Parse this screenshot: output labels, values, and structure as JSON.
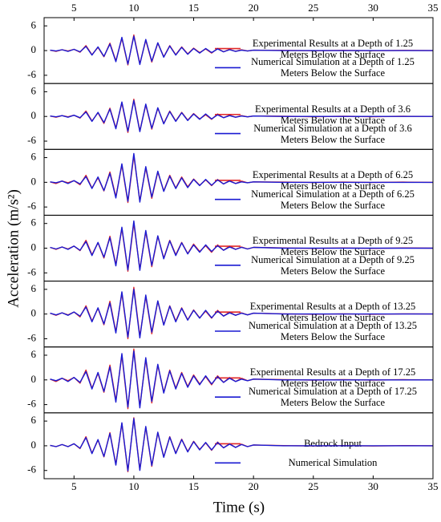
{
  "chart_data": {
    "type": "line",
    "xlabel": "Time (s)",
    "ylabel": "Acceleration (m/s²)",
    "xlim": [
      2.5,
      35
    ],
    "xticks": [
      5,
      10,
      15,
      20,
      25,
      30,
      35
    ],
    "x": [
      3,
      3.5,
      4,
      4.5,
      5,
      5.5,
      6,
      6.5,
      7,
      7.5,
      8,
      8.5,
      9,
      9.5,
      10,
      10.5,
      11,
      11.5,
      12,
      12.5,
      13,
      13.5,
      14,
      14.5,
      15,
      15.5,
      16,
      16.5,
      17,
      17.5,
      18,
      18.5,
      19,
      19.5,
      20,
      22.5,
      25,
      27.5,
      30,
      32.5,
      35
    ],
    "panels": [
      {
        "ylim": [
          -8,
          8
        ],
        "yticks": [
          -6,
          0,
          6
        ],
        "series": [
          {
            "name": "Experimental Results at a Depth of 1.25 Meters Below the Surface",
            "color": "#e02828",
            "values": [
              0.1,
              -0.2,
              0.2,
              -0.1,
              0.3,
              -0.4,
              1.2,
              -1.0,
              0.8,
              -1.5,
              1.8,
              -2.5,
              3.0,
              -3.5,
              3.8,
              -3.2,
              2.5,
              -2.8,
              1.8,
              -1.5,
              1.2,
              -1.0,
              0.9,
              -0.8,
              0.6,
              -0.5,
              0.4,
              -0.6,
              0.5,
              -0.3,
              0.3,
              -0.2,
              0.2,
              -0.1,
              0.1,
              0.05,
              -0.05,
              0.05,
              -0.05,
              0.05,
              0
            ]
          },
          {
            "name": "Numerical Simulation at a Depth of 1.25 Meters Below the Surface",
            "color": "#1a1ad2",
            "values": [
              0.1,
              -0.1,
              0.2,
              -0.2,
              0.3,
              -0.3,
              1.0,
              -1.1,
              0.9,
              -1.4,
              1.6,
              -2.7,
              3.2,
              -3.3,
              3.5,
              -3.4,
              2.7,
              -2.6,
              1.9,
              -1.6,
              1.1,
              -1.1,
              0.8,
              -0.9,
              0.5,
              -0.6,
              0.5,
              -0.5,
              0.4,
              -0.3,
              0.2,
              -0.2,
              0.1,
              -0.1,
              0.1,
              0,
              0,
              0,
              0,
              0,
              0
            ]
          }
        ]
      },
      {
        "ylim": [
          -8,
          8
        ],
        "yticks": [
          -6,
          0,
          6
        ],
        "series": [
          {
            "name": "Experimental Results at a Depth of 3.6 Meters Below the Surface",
            "color": "#e02828",
            "values": [
              0.1,
              -0.2,
              0.2,
              -0.1,
              0.3,
              -0.4,
              1.3,
              -1.1,
              0.9,
              -1.7,
              2.0,
              -2.8,
              3.3,
              -3.9,
              4.2,
              -3.5,
              2.8,
              -3.1,
              2.0,
              -1.7,
              1.3,
              -1.1,
              1.0,
              -0.9,
              0.7,
              -0.6,
              0.4,
              -0.7,
              0.6,
              -0.3,
              0.3,
              -0.2,
              0.2,
              -0.1,
              0.1,
              0.05,
              -0.05,
              0.05,
              -0.05,
              0.05,
              0
            ]
          },
          {
            "name": "Numerical Simulation at a Depth of 3.6 Meters Below the Surface",
            "color": "#1a1ad2",
            "values": [
              0.1,
              -0.1,
              0.2,
              -0.2,
              0.3,
              -0.3,
              1.1,
              -1.2,
              1.0,
              -1.5,
              1.8,
              -3.0,
              3.5,
              -3.6,
              3.9,
              -3.7,
              3.0,
              -2.9,
              2.1,
              -1.8,
              1.2,
              -1.2,
              0.9,
              -1.0,
              0.6,
              -0.7,
              0.6,
              -0.6,
              0.4,
              -0.3,
              0.2,
              -0.2,
              0.1,
              -0.1,
              0.1,
              0,
              0,
              0,
              0,
              0,
              0
            ]
          }
        ]
      },
      {
        "ylim": [
          -8,
          8
        ],
        "yticks": [
          -6,
          0,
          6
        ],
        "series": [
          {
            "name": "Experimental Results at a Depth of 6.25 Meters Below the Surface",
            "color": "#e02828",
            "values": [
              0.1,
              -0.3,
              0.3,
              -0.1,
              0.4,
              -0.6,
              1.7,
              -1.4,
              1.1,
              -2.1,
              2.5,
              -3.5,
              4.2,
              -4.9,
              6.5,
              -4.5,
              3.5,
              -3.9,
              2.5,
              -2.1,
              1.7,
              -1.4,
              1.3,
              -1.1,
              0.8,
              -0.7,
              0.6,
              -0.8,
              0.7,
              -0.4,
              0.4,
              -0.3,
              0.3,
              -0.1,
              0.1,
              0.05,
              -0.05,
              0.05,
              -0.05,
              0.05,
              0
            ]
          },
          {
            "name": "Numerical Simulation at a Depth of 6.25 Meters Below the Surface",
            "color": "#1a1ad2",
            "values": [
              0.1,
              -0.1,
              0.3,
              -0.3,
              0.4,
              -0.4,
              1.4,
              -1.5,
              1.3,
              -2.0,
              2.2,
              -3.8,
              4.5,
              -4.6,
              7.0,
              -4.8,
              3.8,
              -3.6,
              2.7,
              -2.2,
              1.5,
              -1.5,
              1.1,
              -1.3,
              0.7,
              -0.8,
              0.7,
              -0.7,
              0.6,
              -0.4,
              0.3,
              -0.3,
              0.1,
              -0.1,
              0.1,
              0,
              0,
              0,
              0,
              0,
              0
            ]
          }
        ]
      },
      {
        "ylim": [
          -8,
          8
        ],
        "yticks": [
          -6,
          0,
          6
        ],
        "series": [
          {
            "name": "Experimental Results at a Depth of 9.25 Meters Below the Surface",
            "color": "#e02828",
            "values": [
              0.2,
              -0.3,
              0.3,
              -0.2,
              0.5,
              -0.6,
              1.9,
              -1.6,
              1.3,
              -2.4,
              2.9,
              -4.0,
              4.8,
              -5.6,
              6.1,
              -5.1,
              4.0,
              -4.5,
              2.9,
              -2.4,
              1.9,
              -1.6,
              1.4,
              -1.3,
              1.0,
              -0.8,
              0.6,
              -1.0,
              0.8,
              -0.5,
              0.5,
              -0.3,
              0.3,
              -0.2,
              0.2,
              0.05,
              -0.05,
              0.05,
              -0.05,
              0.05,
              0
            ]
          },
          {
            "name": "Numerical Simulation at a Depth of 9.25 Meters Below the Surface",
            "color": "#1a1ad2",
            "values": [
              0.2,
              -0.2,
              0.3,
              -0.3,
              0.5,
              -0.5,
              1.6,
              -1.8,
              1.4,
              -2.2,
              2.6,
              -4.3,
              5.1,
              -5.3,
              6.6,
              -5.4,
              4.3,
              -4.2,
              3.0,
              -2.6,
              1.8,
              -1.8,
              1.3,
              -1.4,
              0.8,
              -1.0,
              0.8,
              -0.8,
              0.6,
              -0.5,
              0.3,
              -0.3,
              0.2,
              -0.2,
              0.2,
              0,
              0,
              0,
              0,
              0,
              0
            ]
          }
        ]
      },
      {
        "ylim": [
          -8,
          8
        ],
        "yticks": [
          -6,
          0,
          6
        ],
        "series": [
          {
            "name": "Experimental Results at a Depth of 13.25 Meters Below the Surface",
            "color": "#e02828",
            "values": [
              0.2,
              -0.3,
              0.3,
              -0.2,
              0.5,
              -0.7,
              2.0,
              -1.7,
              1.4,
              -2.6,
              3.1,
              -4.3,
              5.1,
              -6.0,
              6.5,
              -5.4,
              4.3,
              -4.8,
              3.1,
              -2.6,
              2.0,
              -1.7,
              1.5,
              -1.4,
              1.0,
              -0.9,
              0.7,
              -1.0,
              0.9,
              -0.5,
              0.5,
              -0.3,
              0.3,
              -0.2,
              0.2,
              0.05,
              -0.05,
              0.05,
              -0.05,
              0.05,
              0
            ]
          },
          {
            "name": "Numerical Simulation at a Depth of 13.25 Meters Below the Surface",
            "color": "#1a1ad2",
            "values": [
              0.2,
              -0.2,
              0.3,
              -0.3,
              0.5,
              -0.5,
              1.7,
              -1.9,
              1.5,
              -2.4,
              2.7,
              -4.6,
              5.4,
              -5.6,
              6.0,
              -5.8,
              4.6,
              -4.4,
              3.2,
              -2.7,
              1.9,
              -1.9,
              1.4,
              -1.5,
              0.9,
              -1.0,
              0.9,
              -0.9,
              0.7,
              -0.5,
              0.3,
              -0.3,
              0.2,
              -0.2,
              0.2,
              0,
              0,
              0,
              0,
              0,
              0
            ]
          }
        ]
      },
      {
        "ylim": [
          -8,
          8
        ],
        "yticks": [
          -6,
          0,
          6
        ],
        "series": [
          {
            "name": "Experimental Results at a Depth of 17.25 Meters Below the Surface",
            "color": "#e02828",
            "values": [
              0.2,
              -0.4,
              0.4,
              -0.2,
              0.6,
              -0.8,
              2.4,
              -2.0,
              1.6,
              -3.0,
              3.6,
              -5.0,
              6.0,
              -7.0,
              7.5,
              -6.4,
              5.0,
              -5.6,
              3.6,
              -3.0,
              2.4,
              -2.0,
              1.8,
              -1.6,
              1.2,
              -1.0,
              0.8,
              -1.2,
              1.0,
              -0.6,
              0.6,
              -0.4,
              0.4,
              -0.2,
              0.2,
              0.05,
              -0.05,
              0.05,
              -0.05,
              0.05,
              0
            ]
          },
          {
            "name": "Numerical Simulation at a Depth of 17.25 Meters Below the Surface",
            "color": "#1a1ad2",
            "values": [
              0.2,
              -0.2,
              0.4,
              -0.4,
              0.6,
              -0.6,
              2.0,
              -2.2,
              1.8,
              -2.8,
              3.2,
              -5.4,
              6.4,
              -6.6,
              7.0,
              -6.8,
              5.4,
              -5.2,
              3.8,
              -3.2,
              2.2,
              -2.2,
              1.6,
              -1.8,
              1.0,
              -1.2,
              1.0,
              -1.0,
              0.8,
              -0.6,
              0.4,
              -0.4,
              0.2,
              -0.2,
              0.2,
              0,
              0,
              0,
              0,
              0,
              0
            ]
          }
        ]
      },
      {
        "ylim": [
          -8,
          8
        ],
        "yticks": [
          -6,
          0,
          6
        ],
        "series": [
          {
            "name": "Bedrock Input",
            "color": "#e02828",
            "values": [
              0.1,
              -0.2,
              0.3,
              -0.2,
              0.5,
              -0.7,
              2.2,
              -1.8,
              1.4,
              -2.7,
              3.2,
              -4.5,
              5.4,
              -6.3,
              6.8,
              -5.8,
              4.5,
              -5.0,
              3.2,
              -2.7,
              2.2,
              -1.8,
              1.6,
              -1.4,
              1.1,
              -0.9,
              0.7,
              -1.1,
              0.9,
              -0.5,
              0.5,
              -0.4,
              0.4,
              -0.2,
              0.2,
              0.05,
              -0.05,
              0.05,
              -0.05,
              0.05,
              0
            ]
          },
          {
            "name": "Numerical Simulation",
            "color": "#1a1ad2",
            "values": [
              0.1,
              -0.2,
              0.3,
              -0.2,
              0.5,
              -0.6,
              2.0,
              -1.9,
              1.5,
              -2.6,
              3.0,
              -4.7,
              5.6,
              -6.1,
              6.6,
              -6.0,
              4.7,
              -4.8,
              3.3,
              -2.8,
              2.1,
              -1.9,
              1.5,
              -1.5,
              1.0,
              -1.0,
              0.8,
              -1.0,
              0.8,
              -0.5,
              0.4,
              -0.4,
              0.3,
              -0.2,
              0.2,
              0,
              0,
              0,
              0,
              0,
              0
            ]
          }
        ]
      }
    ]
  }
}
